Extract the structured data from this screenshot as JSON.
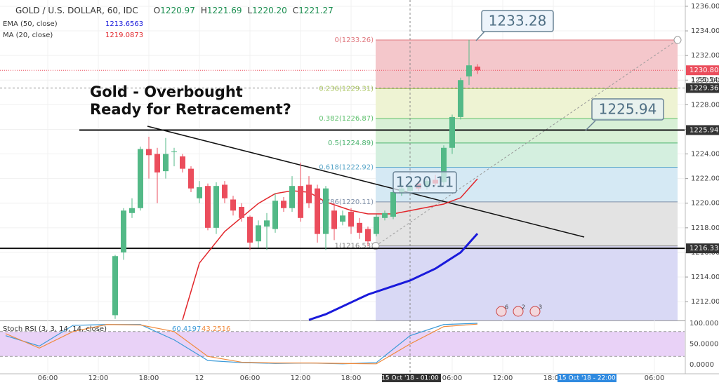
{
  "header": {
    "symbol": "GOLD / U.S. DOLLAR, 60, IDC",
    "ohlc": [
      {
        "k": "O",
        "v": "1220.97"
      },
      {
        "k": "H",
        "v": "1221.69"
      },
      {
        "k": "L",
        "v": "1220.20"
      },
      {
        "k": "C",
        "v": "1221.27"
      }
    ]
  },
  "chart_data": {
    "type": "candlestick",
    "title": "GOLD / U.S. DOLLAR, 60, IDC",
    "annotation": [
      "Gold - Overbought",
      "Ready for Retracement?"
    ],
    "up_color": "#53b987",
    "down_color": "#eb4d5c",
    "x": [
      13,
      14,
      15,
      16,
      17,
      18,
      19,
      20,
      21,
      22,
      23,
      24,
      25,
      26,
      27,
      28,
      29,
      30,
      31,
      32,
      33,
      34,
      35,
      36,
      37,
      38,
      39,
      40,
      41,
      42,
      43,
      44,
      45,
      46,
      47,
      48,
      49,
      50,
      51,
      52,
      53,
      54,
      55,
      56
    ],
    "open": [
      1210.9,
      1216,
      1219.2,
      1219.6,
      1224.4,
      1224,
      1222.6,
      1224.2,
      1223.8,
      1222.8,
      1220.4,
      1221.4,
      1218,
      1221.5,
      1220.3,
      1219.7,
      1218.9,
      1216.9,
      1218.1,
      1217.9,
      1220.2,
      1219.6,
      1221.4,
      1221.5,
      1221.2,
      1217.5,
      1219.4,
      1218.5,
      1219.3,
      1218.4,
      1217.9,
      1217.5,
      1218.8,
      1218.9,
      1220.8,
      1221,
      1221.6,
      1221.3,
      1221.9,
      1221.7,
      1224.5,
      1227,
      1230.3,
      1231.1
    ],
    "high": [
      1215.8,
      1219.6,
      1220.4,
      1224.6,
      1225.4,
      1224.5,
      1225.3,
      1224.5,
      1224,
      1223,
      1221.8,
      1221.6,
      1221.7,
      1221.8,
      1220.6,
      1220,
      1219,
      1218.6,
      1219.2,
      1220.8,
      1220.5,
      1222.2,
      1223.3,
      1222.2,
      1221.5,
      1221.4,
      1220,
      1219.4,
      1219.6,
      1218.8,
      1218.1,
      1219.1,
      1219.4,
      1221.3,
      1221.5,
      1221.7,
      1221.8,
      1222,
      1222.3,
      1224.7,
      1227.2,
      1230.2,
      1233.28,
      1231.3
    ],
    "low": [
      1210.6,
      1215.4,
      1218.8,
      1219.4,
      1222,
      1220,
      1222,
      1223,
      1222.5,
      1220.9,
      1220,
      1217.8,
      1217.5,
      1220,
      1219,
      1218.5,
      1216.2,
      1216.4,
      1216.2,
      1217.6,
      1219.3,
      1219.3,
      1218.5,
      1219.6,
      1216.8,
      1216.2,
      1217,
      1218.2,
      1217.5,
      1217.1,
      1216.5,
      1217.3,
      1218.6,
      1218.7,
      1220.6,
      1220.8,
      1221,
      1221.1,
      1221.4,
      1221.4,
      1224,
      1226.8,
      1229.6,
      1230.5
    ],
    "close": [
      1215.7,
      1219.4,
      1219.6,
      1224.4,
      1223.9,
      1222.5,
      1224,
      1224.2,
      1222.8,
      1221.2,
      1221.3,
      1218,
      1221.4,
      1220.4,
      1219.4,
      1218.8,
      1216.8,
      1218.2,
      1218.6,
      1220.2,
      1219.6,
      1221.4,
      1218.8,
      1220,
      1217.5,
      1221.2,
      1217.9,
      1219,
      1218.1,
      1217.6,
      1216.9,
      1218.9,
      1219.2,
      1220.9,
      1221.2,
      1221.4,
      1221.2,
      1221.8,
      1221.6,
      1224.5,
      1227,
      1230,
      1231.2,
      1230.8
    ],
    "xlim": [
      -0.667,
      80.583
    ],
    "ylim": [
      1210.47,
      1236.51
    ],
    "yticks": [
      {
        "value": 1212,
        "label": "1212.00"
      },
      {
        "value": 1214,
        "label": "1214.00"
      },
      {
        "value": 1216,
        "label": "1216.00"
      },
      {
        "value": 1218,
        "label": "1218.00"
      },
      {
        "value": 1220,
        "label": "1220.00"
      },
      {
        "value": 1222,
        "label": "1222.00"
      },
      {
        "value": 1224,
        "label": "1224.00"
      },
      {
        "value": 1226,
        "label": "1226.00"
      },
      {
        "value": 1228,
        "label": "1228.00"
      },
      {
        "value": 1230,
        "label": "1230.00"
      },
      {
        "value": 1232,
        "label": "1232.00"
      },
      {
        "value": 1234,
        "label": "1234.00"
      },
      {
        "value": 1236,
        "label": "1236.00"
      }
    ],
    "xticks": [
      {
        "value": 5,
        "label": "06:00"
      },
      {
        "value": 11,
        "label": "12:00"
      },
      {
        "value": 17,
        "label": "18:00"
      },
      {
        "value": 23,
        "label": "12"
      },
      {
        "value": 29,
        "label": "06:00"
      },
      {
        "value": 35,
        "label": "12:00"
      },
      {
        "value": 41,
        "label": "18:00"
      },
      {
        "value": 53,
        "label": "06:00"
      },
      {
        "value": 59,
        "label": "12:00"
      },
      {
        "value": 65,
        "label": "18:00"
      },
      {
        "value": 77,
        "label": "06:00"
      }
    ],
    "crosshair_x": {
      "value": 48,
      "label": "15 Oct '18 - 01:00"
    },
    "marker_x": {
      "value": 69,
      "label": "15 Oct '18 - 22:00"
    },
    "series": [
      {
        "name": "EMA (50, close)",
        "last": "1213.6563",
        "color": "#1a1adb",
        "x": [
          36,
          38,
          43,
          48,
          51,
          54,
          56
        ],
        "values": [
          1210.52,
          1210.98,
          1212.58,
          1213.72,
          1214.68,
          1216.0,
          1217.53
        ]
      },
      {
        "name": "MA (20, close)",
        "last": "1219.0873",
        "color": "#e2262b",
        "x": [
          21,
          23,
          26,
          28,
          30,
          32,
          34,
          36,
          38,
          41,
          43,
          46,
          49,
          52,
          54,
          56
        ],
        "values": [
          1210.52,
          1215.14,
          1217.7,
          1218.84,
          1219.98,
          1220.78,
          1221.01,
          1220.89,
          1220.1,
          1219.41,
          1219.13,
          1219.13,
          1219.53,
          1219.93,
          1220.44,
          1221.98
        ]
      }
    ],
    "fib": {
      "levels": [
        {
          "value": 1233.26,
          "label": "0(1233.26)"
        },
        {
          "value": 1229.31,
          "label": "0.236(1229.31)"
        },
        {
          "value": 1226.87,
          "label": "0.382(1226.87)"
        },
        {
          "value": 1224.89,
          "label": "0.5(1224.89)"
        },
        {
          "value": 1222.92,
          "label": "0.618(1222.92)"
        },
        {
          "value": 1220.11,
          "label": "0.786(1220.11)"
        },
        {
          "value": 1216.53,
          "label": "1(1216.53)"
        }
      ],
      "colors": [
        "#f4c7cb",
        "#eef3d3",
        "#d8f0d6",
        "#d4efdf",
        "#d5e9f4",
        "#e3e3e3",
        "#d9d9f5"
      ],
      "line_colors": [
        "#e0787f",
        "#a7c35a",
        "#5bbf6a",
        "#4cb36f",
        "#5aa7c9",
        "#7f8fa8",
        "#8c8c8c"
      ]
    },
    "hlines": [
      1225.94,
      1216.33
    ],
    "callouts": [
      1233.28,
      1225.94,
      1220.11
    ],
    "last_price": {
      "value": 1230.8,
      "label": "1230.80"
    },
    "countdown": "1:55:54",
    "crosshair_price": {
      "value": 1229.36,
      "label": "1229.36"
    },
    "events": [
      "6",
      "2",
      "3"
    ],
    "stoch": {
      "name": "Stoch RSI (3, 3, 14, 14, close)",
      "last": [
        "60.4197",
        "43.2516"
      ],
      "ylim": [
        -22.03,
        105.08
      ],
      "yticks": [
        {
          "value": 100,
          "label": "100.0000"
        },
        {
          "value": 50,
          "label": "50.0000"
        },
        {
          "value": 0,
          "label": "0.0000"
        }
      ],
      "band": [
        20,
        80
      ],
      "x": [
        0,
        4,
        8,
        12,
        16,
        20,
        24,
        28,
        32,
        36,
        40,
        44,
        48,
        52,
        56
      ],
      "series": [
        {
          "name": "%K",
          "color": "#3c9ad8",
          "values": [
            70,
            45,
            95,
            97,
            97,
            60,
            10,
            5,
            3,
            4,
            2,
            5,
            70,
            97,
            100
          ]
        },
        {
          "name": "%D",
          "color": "#f08a3c",
          "values": [
            75,
            40,
            80,
            97,
            96,
            80,
            20,
            6,
            4,
            4,
            3,
            2,
            50,
            92,
            98
          ]
        }
      ]
    }
  }
}
